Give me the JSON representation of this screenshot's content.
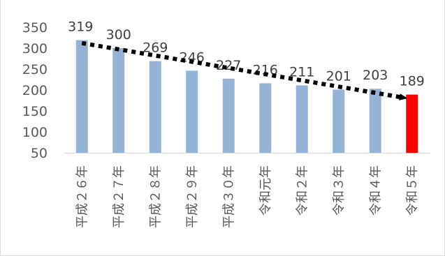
{
  "chart_data": {
    "type": "bar",
    "title": "",
    "xlabel": "",
    "ylabel": "",
    "ylim": [
      50,
      350
    ],
    "yticks": [
      50,
      100,
      150,
      200,
      250,
      300,
      350
    ],
    "grid": false,
    "categories": [
      "平成２６年",
      "平成２７年",
      "平成２８年",
      "平成２９年",
      "平成３０年",
      "令和元年",
      "令和２年",
      "令和３年",
      "令和４年",
      "令和５年"
    ],
    "values": [
      319,
      300,
      269,
      246,
      227,
      216,
      211,
      201,
      203,
      189
    ],
    "bar_color": "#95b3d7",
    "highlight_color": "#ff0000",
    "highlight_index": 9,
    "trend_arrow": {
      "from_category": 0,
      "from_value": 312,
      "to_category": 9,
      "to_value": 185,
      "style": "dotted",
      "color": "#000000"
    }
  }
}
